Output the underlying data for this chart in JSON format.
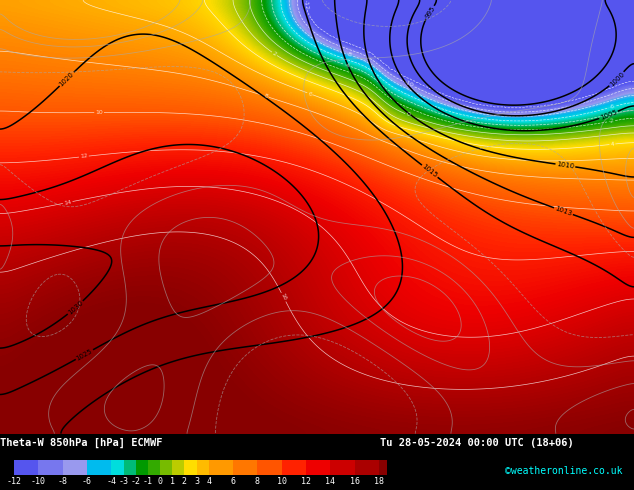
{
  "title_left": "Theta-W 850hPa [hPa] ECMWF",
  "title_right": "Tu 28-05-2024 00:00 UTC (18+06)",
  "colorbar_ticks": [
    -12,
    -10,
    -8,
    -6,
    -4,
    -3,
    -2,
    -1,
    0,
    1,
    2,
    3,
    4,
    6,
    8,
    10,
    12,
    14,
    16,
    18
  ],
  "colorbar_colors": [
    "#5555ee",
    "#7777ee",
    "#9999ee",
    "#00bbee",
    "#00dddd",
    "#00bb77",
    "#009900",
    "#33aa00",
    "#77bb00",
    "#bbcc00",
    "#ffdd00",
    "#ffbb00",
    "#ff9900",
    "#ff7700",
    "#ff5500",
    "#ff2200",
    "#ee0000",
    "#cc0000",
    "#aa0000",
    "#880000"
  ],
  "footer_text": "©weatheronline.co.uk",
  "fig_width": 6.34,
  "fig_height": 4.9,
  "dpi": 100
}
